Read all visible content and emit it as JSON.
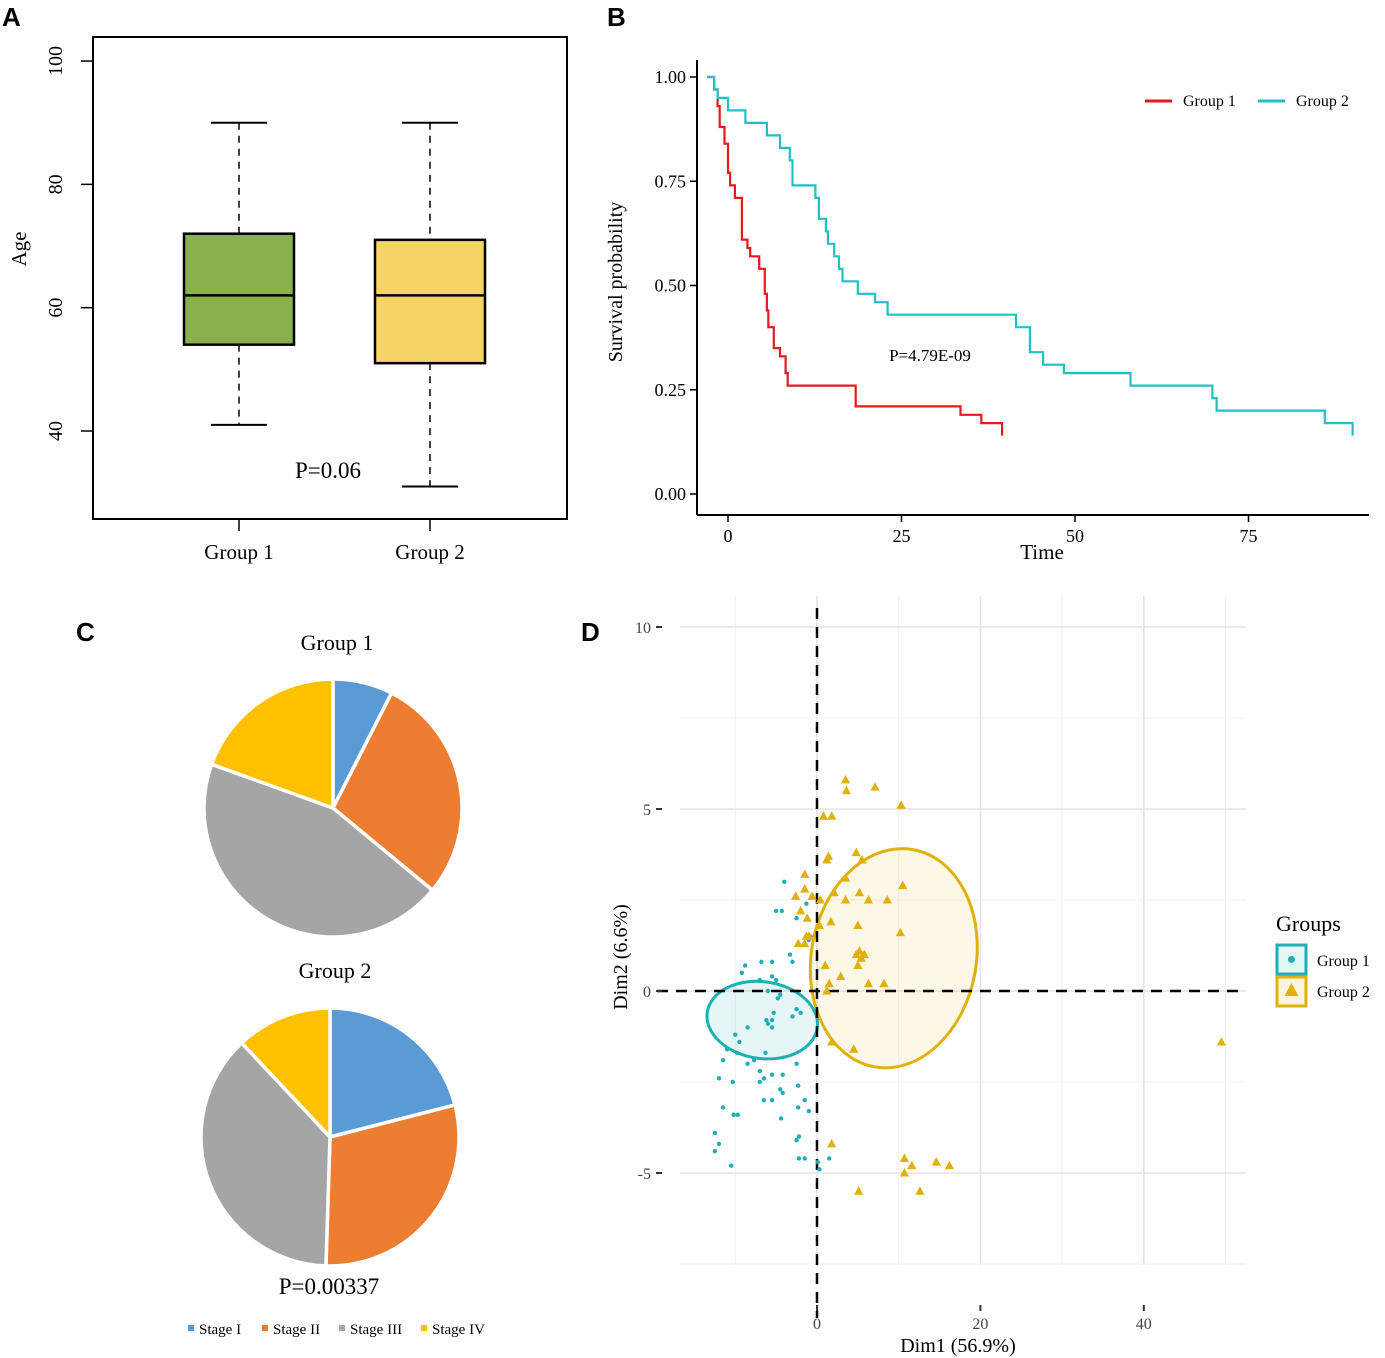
{
  "panel_letters": [
    "A",
    "B",
    "C",
    "D"
  ],
  "chart_data": [
    {
      "panel": "A",
      "type": "box",
      "ylabel": "Age",
      "ylim": [
        25,
        105
      ],
      "yticks": [
        40,
        60,
        80,
        100
      ],
      "categories": [
        "Group 1",
        "Group 2"
      ],
      "boxes": [
        {
          "name": "Group 1",
          "whisker_low": 41,
          "q1": 54,
          "median": 62,
          "q3": 72,
          "whisker_high": 90,
          "color": "#8AB04E"
        },
        {
          "name": "Group 2",
          "whisker_low": 31,
          "q1": 51,
          "median": 62,
          "q3": 71,
          "whisker_high": 90,
          "color": "#F5D465"
        }
      ],
      "annotation": "P=0.06"
    },
    {
      "panel": "B",
      "type": "line",
      "subtype": "kaplan-meier",
      "xlabel": "Time",
      "ylabel": "Survival probability",
      "xlim": [
        -5,
        92
      ],
      "ylim": [
        0,
        1.03
      ],
      "xticks": [
        0,
        25,
        50,
        75
      ],
      "yticks": [
        "0.00",
        "0.25",
        "0.50",
        "0.75",
        "1.00"
      ],
      "annotation": "P=4.79E-09",
      "legend": [
        "Group 1",
        "Group 2"
      ],
      "series": [
        {
          "name": "Group 1",
          "color": "#E41A1C",
          "points": [
            [
              -3,
              1.0
            ],
            [
              -2,
              1.0
            ],
            [
              -2,
              0.97
            ],
            [
              -1.5,
              0.97
            ],
            [
              -1.5,
              0.93
            ],
            [
              -1.2,
              0.93
            ],
            [
              -1.2,
              0.88
            ],
            [
              -0.5,
              0.88
            ],
            [
              -0.5,
              0.84
            ],
            [
              0,
              0.84
            ],
            [
              0,
              0.77
            ],
            [
              0.3,
              0.77
            ],
            [
              0.3,
              0.74
            ],
            [
              1,
              0.74
            ],
            [
              1,
              0.71
            ],
            [
              2,
              0.71
            ],
            [
              2,
              0.61
            ],
            [
              2.8,
              0.61
            ],
            [
              2.8,
              0.59
            ],
            [
              3.2,
              0.59
            ],
            [
              3.2,
              0.57
            ],
            [
              4.5,
              0.57
            ],
            [
              4.5,
              0.54
            ],
            [
              5.3,
              0.54
            ],
            [
              5.3,
              0.48
            ],
            [
              5.6,
              0.48
            ],
            [
              5.6,
              0.44
            ],
            [
              5.8,
              0.44
            ],
            [
              5.8,
              0.4
            ],
            [
              6.6,
              0.4
            ],
            [
              6.6,
              0.35
            ],
            [
              7.5,
              0.35
            ],
            [
              7.5,
              0.33
            ],
            [
              8.3,
              0.33
            ],
            [
              8.3,
              0.29
            ],
            [
              8.6,
              0.29
            ],
            [
              8.6,
              0.26
            ],
            [
              18.4,
              0.26
            ],
            [
              18.4,
              0.21
            ],
            [
              33.5,
              0.21
            ],
            [
              33.5,
              0.19
            ],
            [
              36.5,
              0.19
            ],
            [
              36.5,
              0.17
            ],
            [
              39.5,
              0.17
            ],
            [
              39.5,
              0.14
            ]
          ]
        },
        {
          "name": "Group 2",
          "color": "#1FC1C6",
          "points": [
            [
              -3,
              1.0
            ],
            [
              -2,
              1.0
            ],
            [
              -2,
              0.97
            ],
            [
              -1.5,
              0.97
            ],
            [
              -1.5,
              0.95
            ],
            [
              0,
              0.95
            ],
            [
              0,
              0.92
            ],
            [
              2.5,
              0.92
            ],
            [
              2.5,
              0.89
            ],
            [
              5.6,
              0.89
            ],
            [
              5.6,
              0.86
            ],
            [
              7.5,
              0.86
            ],
            [
              7.5,
              0.83
            ],
            [
              8.9,
              0.83
            ],
            [
              8.9,
              0.8
            ],
            [
              9.3,
              0.8
            ],
            [
              9.3,
              0.74
            ],
            [
              12.6,
              0.74
            ],
            [
              12.6,
              0.71
            ],
            [
              13.1,
              0.71
            ],
            [
              13.1,
              0.66
            ],
            [
              14.1,
              0.66
            ],
            [
              14.1,
              0.63
            ],
            [
              14.4,
              0.63
            ],
            [
              14.4,
              0.6
            ],
            [
              15.3,
              0.6
            ],
            [
              15.3,
              0.57
            ],
            [
              16.0,
              0.57
            ],
            [
              16.0,
              0.54
            ],
            [
              16.5,
              0.54
            ],
            [
              16.5,
              0.51
            ],
            [
              18.7,
              0.51
            ],
            [
              18.7,
              0.48
            ],
            [
              21.2,
              0.48
            ],
            [
              21.2,
              0.46
            ],
            [
              23.0,
              0.46
            ],
            [
              23.0,
              0.43
            ],
            [
              41.5,
              0.43
            ],
            [
              41.5,
              0.4
            ],
            [
              43.5,
              0.4
            ],
            [
              43.5,
              0.34
            ],
            [
              45.4,
              0.34
            ],
            [
              45.4,
              0.31
            ],
            [
              48.4,
              0.31
            ],
            [
              48.4,
              0.29
            ],
            [
              58.0,
              0.29
            ],
            [
              58.0,
              0.26
            ],
            [
              69.8,
              0.26
            ],
            [
              69.8,
              0.23
            ],
            [
              70.4,
              0.23
            ],
            [
              70.4,
              0.2
            ],
            [
              86.0,
              0.2
            ],
            [
              86.0,
              0.17
            ],
            [
              90.0,
              0.17
            ],
            [
              90.0,
              0.14
            ]
          ]
        }
      ]
    },
    {
      "panel": "C",
      "type": "pie",
      "pies": [
        {
          "title": "Group 1",
          "labels": [
            "Stage I",
            "Stage II",
            "Stage III",
            "Stage IV"
          ],
          "values": [
            7.5,
            28.5,
            44.5,
            19.5
          ]
        },
        {
          "title": "Group 2",
          "labels": [
            "Stage I",
            "Stage II",
            "Stage III",
            "Stage IV"
          ],
          "values": [
            21,
            29.5,
            37.5,
            12
          ]
        }
      ],
      "colors": [
        "#5B9BD5",
        "#ED7D31",
        "#A5A5A5",
        "#FFC000"
      ],
      "legend": [
        "Stage I",
        "Stage II",
        "Stage III",
        "Stage IV"
      ],
      "annotation": "P=0.00337"
    },
    {
      "panel": "D",
      "type": "scatter",
      "xlabel": "Dim1 (56.9%)",
      "ylabel": "Dim2 (6.6%)",
      "xlim": [
        -16,
        52
      ],
      "ylim": [
        -7.5,
        10.2
      ],
      "xticks": [
        0,
        20,
        40
      ],
      "yticks": [
        -5,
        0,
        5,
        10
      ],
      "legend_title": "Groups",
      "legend": [
        "Group 1",
        "Group 2"
      ],
      "series": [
        {
          "name": "Group 1",
          "color": "#1EAFB5",
          "marker": "circle",
          "ellipse": {
            "center": [
              -6.7,
              -0.8
            ],
            "radii": [
              6.8,
              4.7
            ],
            "rotation_deg": 8
          },
          "points": [
            [
              -4,
              3
            ],
            [
              -5,
              2.2
            ],
            [
              -4.3,
              2.2
            ],
            [
              -1.3,
              2.4
            ],
            [
              -2.5,
              2
            ],
            [
              -1,
              1.4
            ],
            [
              -0.8,
              1.5
            ],
            [
              0.3,
              1.8
            ],
            [
              -3.3,
              1
            ],
            [
              -3,
              0.8
            ],
            [
              -5.5,
              0.8
            ],
            [
              -6.8,
              0.8
            ],
            [
              -8.8,
              0.7
            ],
            [
              -9.2,
              0.5
            ],
            [
              -7,
              0.3
            ],
            [
              -5.5,
              0.4
            ],
            [
              -5,
              0.3
            ],
            [
              -6,
              0
            ],
            [
              -4.8,
              -0.2
            ],
            [
              -4.5,
              -0.1
            ],
            [
              -2.5,
              -0.5
            ],
            [
              -3,
              -0.7
            ],
            [
              -2,
              -0.6
            ],
            [
              -5.5,
              -0.8
            ],
            [
              -5.3,
              -0.6
            ],
            [
              -6,
              -0.9
            ],
            [
              -5.5,
              -1
            ],
            [
              -6.2,
              -0.8
            ],
            [
              -8.5,
              -1
            ],
            [
              -10,
              -1.2
            ],
            [
              -9.5,
              -1.4
            ],
            [
              -9.8,
              -1.7
            ],
            [
              -11,
              -1.6
            ],
            [
              -7.7,
              -1.9
            ],
            [
              -6.3,
              -1.7
            ],
            [
              -8.5,
              -2
            ],
            [
              -11.5,
              -1.9
            ],
            [
              -12,
              -2.4
            ],
            [
              -7,
              -2.2
            ],
            [
              -5.5,
              -2.3
            ],
            [
              -4.2,
              -2.3
            ],
            [
              -2.5,
              -2
            ],
            [
              -4.2,
              -2.8
            ],
            [
              -6.5,
              -2.4
            ],
            [
              -7,
              -2.5
            ],
            [
              -10.3,
              -2.5
            ],
            [
              -4.5,
              -2.7
            ],
            [
              -2.3,
              -2.6
            ],
            [
              -5.5,
              -3
            ],
            [
              -2.3,
              -3.2
            ],
            [
              -6.5,
              -3
            ],
            [
              -4.4,
              -3.5
            ],
            [
              -1.5,
              -3
            ],
            [
              -1,
              -3.3
            ],
            [
              -10.2,
              -3.4
            ],
            [
              -11.5,
              -3.2
            ],
            [
              -9.7,
              -3.4
            ],
            [
              -12.5,
              -3.9
            ],
            [
              -12,
              -4.2
            ],
            [
              -2.5,
              -4.1
            ],
            [
              -2.2,
              -4
            ],
            [
              -12.5,
              -4.4
            ],
            [
              -2.2,
              -4.6
            ],
            [
              -1.5,
              -4.6
            ],
            [
              0.1,
              -4.7
            ],
            [
              1.5,
              -4.6
            ],
            [
              0.3,
              -4.9
            ],
            [
              -10.5,
              -4.8
            ]
          ]
        },
        {
          "name": "Group 2",
          "color": "#E0B10C",
          "marker": "triangle",
          "ellipse": {
            "center": [
              9.4,
              0.9
            ],
            "radii": [
              13.5,
              10.1
            ],
            "rotation_deg": -80
          },
          "points": [
            [
              3.5,
              5.8
            ],
            [
              3.6,
              5.5
            ],
            [
              7.1,
              5.6
            ],
            [
              10.3,
              5.1
            ],
            [
              0.8,
              4.8
            ],
            [
              1.8,
              4.8
            ],
            [
              4.8,
              3.8
            ],
            [
              1.4,
              3.7
            ],
            [
              1.2,
              3.6
            ],
            [
              5.5,
              3.6
            ],
            [
              -1.5,
              3.2
            ],
            [
              3.5,
              3.1
            ],
            [
              10.5,
              2.9
            ],
            [
              -1.5,
              2.8
            ],
            [
              2.1,
              2.7
            ],
            [
              5.2,
              2.7
            ],
            [
              -0.6,
              2.6
            ],
            [
              6.3,
              2.5
            ],
            [
              -2.6,
              2.6
            ],
            [
              0.4,
              2.5
            ],
            [
              3.5,
              2.5
            ],
            [
              8.6,
              2.5
            ],
            [
              -2,
              2.2
            ],
            [
              -1.2,
              2
            ],
            [
              1.7,
              1.9
            ],
            [
              0.3,
              1.8
            ],
            [
              5,
              1.8
            ],
            [
              10.2,
              1.6
            ],
            [
              -1,
              1.5
            ],
            [
              -1.3,
              1.5
            ],
            [
              -1.5,
              1.3
            ],
            [
              -2.3,
              1.3
            ],
            [
              5.2,
              1.1
            ],
            [
              4.8,
              1
            ],
            [
              5.8,
              1
            ],
            [
              5.4,
              0.9
            ],
            [
              5,
              0.7
            ],
            [
              1,
              0.7
            ],
            [
              2.9,
              0.4
            ],
            [
              1.5,
              0.2
            ],
            [
              6.3,
              0.2
            ],
            [
              8.2,
              0.2
            ],
            [
              1.2,
              0
            ],
            [
              1.8,
              -1.4
            ],
            [
              4.5,
              -1.6
            ],
            [
              1.8,
              -4.2
            ],
            [
              10.7,
              -4.6
            ],
            [
              14.6,
              -4.7
            ],
            [
              11.6,
              -4.8
            ],
            [
              16.2,
              -4.8
            ],
            [
              10.7,
              -5
            ],
            [
              5.1,
              -5.5
            ],
            [
              12.6,
              -5.5
            ],
            [
              49.5,
              -1.4
            ]
          ]
        }
      ]
    }
  ]
}
